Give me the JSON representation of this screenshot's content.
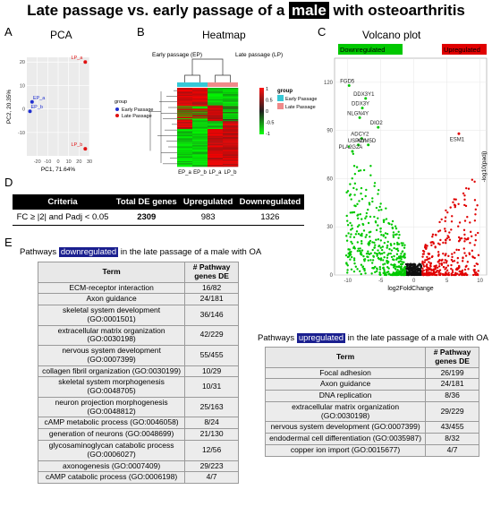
{
  "figure": {
    "title_before": "Late passage vs. early passage of a",
    "title_highlight": "male",
    "title_after": "with osteoarthritis"
  },
  "panels": {
    "A": {
      "letter": "A",
      "title": "PCA"
    },
    "B": {
      "letter": "B",
      "title": "Heatmap"
    },
    "C": {
      "letter": "C",
      "title": "Volcano plot"
    },
    "D": {
      "letter": "D"
    },
    "E": {
      "letter": "E"
    }
  },
  "pca": {
    "chart_data": {
      "type": "scatter",
      "xlabel": "PC1, 71.64%",
      "ylabel": "PC2, 20.35%",
      "xlim": [
        -30,
        30
      ],
      "ylim": [
        -20,
        22
      ],
      "xticks": [
        "-20",
        "-10",
        "0",
        "10",
        "20",
        "30"
      ],
      "yticks": [
        "-10",
        "0",
        "10",
        "20"
      ],
      "legend_title": "group",
      "series": [
        {
          "name": "Early Passage",
          "color": "#1f2fd0",
          "points": [
            {
              "label": "EP_a",
              "x": -25,
              "y": 3
            },
            {
              "label": "EP_b",
              "x": -27,
              "y": -1
            }
          ]
        },
        {
          "name": "Late Passage",
          "color": "#e01010",
          "points": [
            {
              "label": "LP_a",
              "x": 26,
              "y": 20
            },
            {
              "label": "LP_b",
              "x": 26,
              "y": -17
            }
          ]
        }
      ]
    }
  },
  "heatmap": {
    "tree_top_left": "Early passage (EP)",
    "tree_top_right": "Late passage (LP)",
    "columns": [
      "EP_a",
      "EP_b",
      "LP_a",
      "LP_b"
    ],
    "legend_group_title": "group",
    "groups": [
      {
        "name": "Early Passage",
        "color": "#35c8d6"
      },
      {
        "name": "Late Passage",
        "color": "#f08a8a"
      }
    ],
    "scale_ticks": [
      "1",
      "0.5",
      "0",
      "-0.5",
      "-1"
    ]
  },
  "volcano": {
    "down_label": "Downregulated",
    "up_label": "Upregulated",
    "down_color": "#00c800",
    "up_color": "#e00000",
    "chart_data": {
      "type": "scatter",
      "xlabel": "log2FoldChange",
      "ylabel": "-log10(padj)",
      "xlim": [
        -12,
        11
      ],
      "ylim": [
        0,
        135
      ],
      "xticks": [
        -10,
        -5,
        0,
        5,
        10
      ],
      "yticks": [
        0,
        30,
        60,
        90,
        120
      ],
      "labeled_genes": [
        {
          "gene": "FGD5",
          "x": -9.8,
          "y": 118
        },
        {
          "gene": "DDX3Y1",
          "x": -7.3,
          "y": 110
        },
        {
          "gene": "DDX3Y",
          "x": -7.8,
          "y": 104
        },
        {
          "gene": "NLGN4Y",
          "x": -8.2,
          "y": 98
        },
        {
          "gene": "DIO2",
          "x": -5.4,
          "y": 92
        },
        {
          "gene": "ADCY2",
          "x": -7.9,
          "y": 85
        },
        {
          "gene": "USP9Y",
          "x": -8.4,
          "y": 81
        },
        {
          "gene": "KDM5D",
          "x": -6.9,
          "y": 81
        },
        {
          "gene": "PLA2G2A",
          "x": -9.3,
          "y": 77
        },
        {
          "gene": "ESM1",
          "x": 6.8,
          "y": 88
        }
      ]
    }
  },
  "summary": {
    "headers": [
      "Criteria",
      "Total DE genes",
      "Upregulated",
      "Downregulated"
    ],
    "row": [
      "FC ≥ |2| and Padj < 0.05",
      "2309",
      "983",
      "1326"
    ]
  },
  "pathways_down": {
    "caption_before": "Pathways",
    "caption_highlight": "downregulated",
    "caption_after": "in the late passage of a male with OA",
    "headers": [
      "Term",
      "# Pathway genes DE"
    ],
    "rows": [
      [
        "ECM-receptor interaction",
        "16/82"
      ],
      [
        "Axon guidance",
        "24/181"
      ],
      [
        "skeletal system development (GO:0001501)",
        "36/146"
      ],
      [
        "extracellular matrix organization (GO:0030198)",
        "42/229"
      ],
      [
        "nervous system development (GO:0007399)",
        "55/455"
      ],
      [
        "collagen fibril organization (GO:0030199)",
        "10/29"
      ],
      [
        "skeletal system morphogenesis (GO:0048705)",
        "10/31"
      ],
      [
        "neuron projection morphogenesis (GO:0048812)",
        "25/163"
      ],
      [
        "cAMP metabolic process (GO:0046058)",
        "8/24"
      ],
      [
        "generation of neurons (GO:0048699)",
        "21/130"
      ],
      [
        "glycosaminoglycan catabolic process (GO:0006027)",
        "12/56"
      ],
      [
        "axonogenesis (GO:0007409)",
        "29/223"
      ],
      [
        "cAMP catabolic process (GO:0006198)",
        "4/7"
      ]
    ]
  },
  "pathways_up": {
    "caption_before": "Pathways",
    "caption_highlight": "upregulated",
    "caption_after": "in the late passage of a male with OA",
    "headers": [
      "Term",
      "# Pathway genes DE"
    ],
    "rows": [
      [
        "Focal adhesion",
        "26/199"
      ],
      [
        "Axon guidance",
        "24/181"
      ],
      [
        "DNA replication",
        "8/36"
      ],
      [
        "extracellular matrix organization (GO:0030198)",
        "29/229"
      ],
      [
        "nervous system development (GO:0007399)",
        "43/455"
      ],
      [
        "endodermal cell differentiation (GO:0035987)",
        "8/32"
      ],
      [
        "copper ion import (GO:0015677)",
        "4/7"
      ]
    ]
  }
}
